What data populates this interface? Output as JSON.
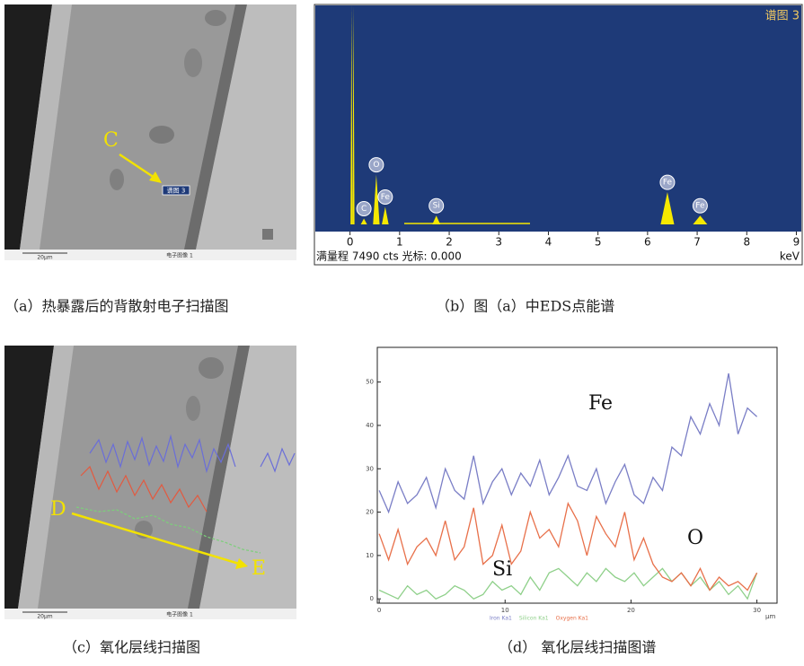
{
  "panels": [
    {
      "caption": "（a）热暴露后的背散射电子扫描图",
      "point_label": "C",
      "spot_label": "谱图 3",
      "scale_bar": "20μm",
      "image_label": "电子图像 1"
    },
    {
      "caption": "（b）图（a）中EDS点能谱"
    },
    {
      "caption": "（c）氧化层线扫描图",
      "start_label": "D",
      "end_label": "E",
      "scale_bar": "20μm",
      "image_label": "电子图像 1"
    },
    {
      "caption": "（d） 氧化层线扫描图谱"
    }
  ],
  "chart_data": [
    {
      "type": "spectrum",
      "title": "谱图 3",
      "status": "满量程 7490 cts 光标: 0.000",
      "x_label": "keV",
      "x": [
        0.03,
        0.07,
        0.28,
        0.53,
        0.71,
        1.74,
        6.4,
        7.06
      ],
      "values": [
        7490,
        7490,
        200,
        1700,
        600,
        300,
        1100,
        300
      ],
      "peak_labels": [
        null,
        null,
        "C",
        "O",
        "Fe",
        "Si",
        "Fe",
        "Fe"
      ],
      "color": "#f5e800",
      "background": "#1e3a78",
      "xlim": [
        -0.7,
        9.1
      ],
      "xticks": [
        0,
        1,
        2,
        3,
        4,
        5,
        6,
        7,
        8,
        9
      ],
      "ylim": [
        0,
        7490
      ]
    },
    {
      "type": "line",
      "x_label": "μm",
      "x": [
        0,
        0.75,
        1.5,
        2.25,
        3,
        3.75,
        4.5,
        5.25,
        6,
        6.75,
        7.5,
        8.25,
        9,
        9.75,
        10.5,
        11.25,
        12,
        12.75,
        13.5,
        14.25,
        15,
        15.75,
        16.5,
        17.25,
        18,
        18.75,
        19.5,
        20.25,
        21,
        21.75,
        22.5,
        23.25,
        24,
        24.75,
        25.5,
        26.25,
        27,
        27.75,
        28.5,
        29.25,
        30
      ],
      "series": [
        {
          "name": "Iron Ka1",
          "color": "#7a7ec6",
          "values": [
            25,
            20,
            27,
            22,
            24,
            28,
            21,
            30,
            25,
            23,
            33,
            22,
            27,
            30,
            24,
            29,
            26,
            32,
            24,
            28,
            33,
            26,
            25,
            30,
            22,
            27,
            31,
            24,
            22,
            28,
            25,
            35,
            33,
            42,
            38,
            45,
            40,
            52,
            38,
            44,
            42
          ]
        },
        {
          "name": "Silicon Ka1",
          "color": "#8fd08a",
          "values": [
            2,
            1,
            0,
            3,
            1,
            2,
            0,
            1,
            3,
            2,
            0,
            1,
            4,
            2,
            3,
            1,
            5,
            2,
            6,
            7,
            5,
            3,
            6,
            4,
            7,
            5,
            4,
            6,
            3,
            5,
            7,
            4,
            6,
            3,
            5,
            2,
            4,
            1,
            3,
            0,
            6
          ]
        },
        {
          "name": "Oxygen Ka1",
          "color": "#e8704a",
          "values": [
            15,
            9,
            16,
            8,
            12,
            14,
            10,
            18,
            9,
            12,
            21,
            8,
            10,
            17,
            8,
            11,
            20,
            14,
            16,
            12,
            22,
            18,
            10,
            19,
            15,
            12,
            20,
            9,
            14,
            8,
            5,
            4,
            6,
            3,
            7,
            2,
            5,
            3,
            4,
            2,
            6
          ]
        }
      ],
      "annotations": [
        "Fe",
        "O",
        "Si"
      ],
      "xlim": [
        -0.15,
        31.6
      ],
      "xticks": [
        0,
        10,
        20,
        30
      ],
      "ylim": [
        -1,
        58
      ],
      "yticks": [
        0,
        10,
        20,
        30,
        40,
        50
      ]
    }
  ]
}
